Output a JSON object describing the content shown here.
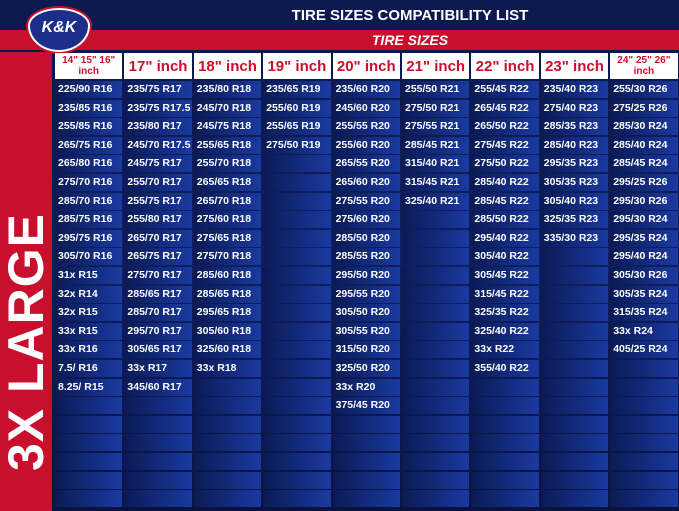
{
  "logo": "K&K",
  "title": "TIRE SIZES COMPATIBILITY LIST",
  "banner": "TIRE SIZES",
  "side_label": "3X LARGE",
  "table": {
    "columns": [
      {
        "header": "14\" 15\" 16\" inch",
        "cells": [
          "225/90 R16",
          "235/85 R16",
          "255/85 R16",
          "265/75 R16",
          "265/80 R16",
          "275/70 R16",
          "285/70 R16",
          "285/75 R16",
          "295/75 R16",
          "305/70 R16",
          "31x R15",
          "32x R14",
          "32x R15",
          "33x R15",
          "33x R16",
          "7.5/ R16",
          "8.25/ R15"
        ]
      },
      {
        "header": "17\" inch",
        "cells": [
          "235/75 R17",
          "235/75 R17.5",
          "235/80 R17",
          "245/70 R17.5",
          "245/75 R17",
          "255/70 R17",
          "255/75 R17",
          "255/80 R17",
          "265/70 R17",
          "265/75 R17",
          "275/70 R17",
          "285/65 R17",
          "285/70 R17",
          "295/70 R17",
          "305/65 R17",
          "33x R17",
          "345/60 R17"
        ]
      },
      {
        "header": "18\" inch",
        "cells": [
          "235/80 R18",
          "245/70 R18",
          "245/75 R18",
          "255/65 R18",
          "255/70 R18",
          "265/65 R18",
          "265/70 R18",
          "275/60 R18",
          "275/65 R18",
          "275/70 R18",
          "285/60 R18",
          "285/65 R18",
          "295/65 R18",
          "305/60 R18",
          "325/60 R18",
          "33x R18"
        ]
      },
      {
        "header": "19\" inch",
        "cells": [
          "235/65 R19",
          "255/60 R19",
          "255/65 R19",
          "275/50 R19"
        ]
      },
      {
        "header": "20\" inch",
        "cells": [
          "235/60 R20",
          "245/60 R20",
          "255/55 R20",
          "255/60 R20",
          "265/55 R20",
          "265/60 R20",
          "275/55 R20",
          "275/60 R20",
          "285/50 R20",
          "285/55 R20",
          "295/50 R20",
          "295/55 R20",
          "305/50 R20",
          "305/55 R20",
          "315/50 R20",
          "325/50 R20",
          "33x R20",
          "375/45 R20"
        ]
      },
      {
        "header": "21\" inch",
        "cells": [
          "255/50 R21",
          "275/50 R21",
          "275/55 R21",
          "285/45 R21",
          "315/40 R21",
          "315/45 R21",
          "325/40 R21"
        ]
      },
      {
        "header": "22\" inch",
        "cells": [
          "255/45 R22",
          "265/45 R22",
          "265/50 R22",
          "275/45 R22",
          "275/50 R22",
          "285/40 R22",
          "285/45 R22",
          "285/50 R22",
          "295/40 R22",
          "305/40 R22",
          "305/45 R22",
          "315/45 R22",
          "325/35 R22",
          "325/40 R22",
          "33x R22",
          "355/40 R22"
        ]
      },
      {
        "header": "23\" inch",
        "cells": [
          "235/40 R23",
          "275/40 R23",
          "285/35 R23",
          "285/40 R23",
          "295/35 R23",
          "305/35 R23",
          "305/40 R23",
          "325/35 R23",
          "335/30 R23"
        ]
      },
      {
        "header": "24\" 25\" 26\" inch",
        "cells": [
          "255/30 R26",
          "275/25 R26",
          "285/30 R24",
          "285/40 R24",
          "285/45 R24",
          "295/25 R26",
          "295/30 R26",
          "295/30 R24",
          "295/35 R24",
          "295/40 R24",
          "305/30 R26",
          "305/35 R24",
          "315/35 R24",
          "33x R24",
          "405/25 R24"
        ]
      }
    ]
  }
}
